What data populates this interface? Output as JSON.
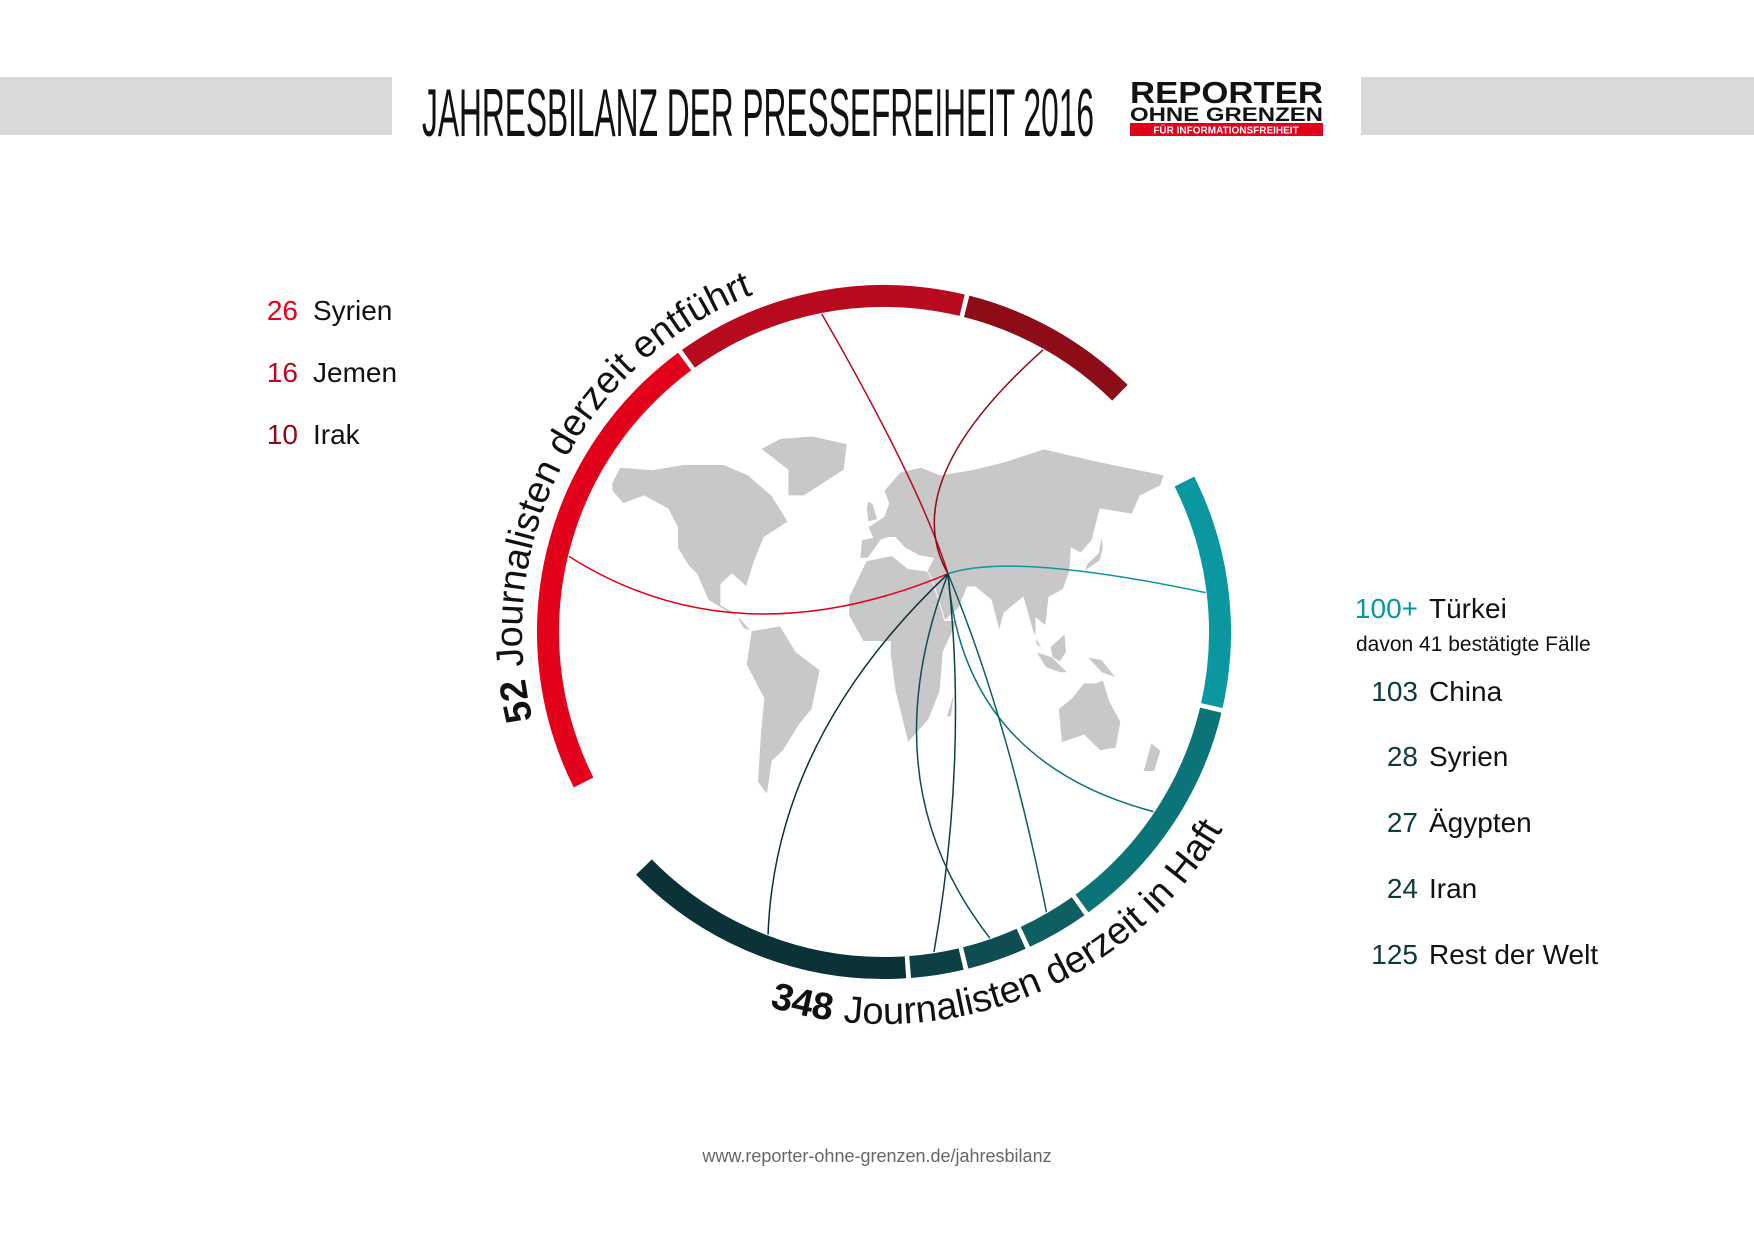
{
  "header": {
    "title": "JAHRESBILANZ DER PRESSEFREIHEIT 2016",
    "logo": {
      "line1": "REPORTER",
      "line2": "OHNE GRENZEN",
      "tagline": "FÜR INFORMATIONSFREIHEIT"
    }
  },
  "kidnapped": {
    "total": 52,
    "caption": "Journalisten derzeit entführt",
    "items": [
      {
        "value": 26,
        "country": "Syrien",
        "color": "#e2001a"
      },
      {
        "value": 16,
        "country": "Jemen",
        "color": "#b80a1f"
      },
      {
        "value": 10,
        "country": "Irak",
        "color": "#8c0d18"
      }
    ]
  },
  "imprisoned": {
    "total": 348,
    "caption": "Journalisten derzeit in Haft",
    "items": [
      {
        "value": 100,
        "value_label": "100+",
        "country": "Türkei",
        "note": "davon 41 bestätigte Fälle",
        "color": "#0a97a0"
      },
      {
        "value": 103,
        "country": "China",
        "color": "#0b7478"
      },
      {
        "value": 28,
        "country": "Syrien",
        "color": "#0e5e62"
      },
      {
        "value": 27,
        "country": "Ägypten",
        "color": "#0f4d52"
      },
      {
        "value": 24,
        "country": "Iran",
        "color": "#0d4045"
      },
      {
        "value": 125,
        "country": "Rest der Welt",
        "color": "#0a3237"
      }
    ]
  },
  "footer": "www.reporter-ohne-grenzen.de/jahresbilanz"
}
